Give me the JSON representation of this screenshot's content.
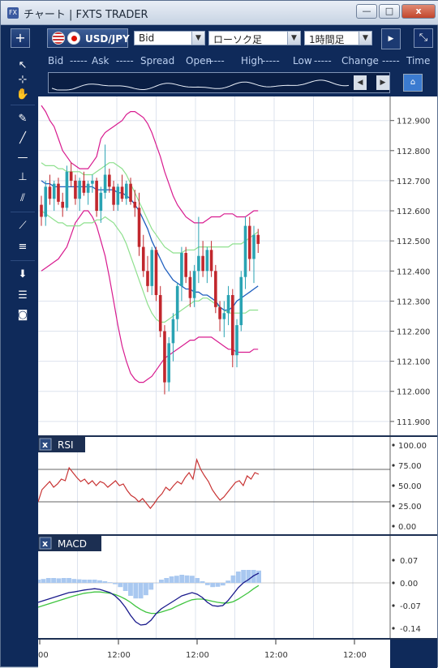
{
  "window": {
    "title": "チャート | FXTS TRADER",
    "min_glyph": "—",
    "max_glyph": "□",
    "close_glyph": "x"
  },
  "toolbar": {
    "plus_glyph": "+",
    "pair": "USD/JPY",
    "price_type": "Bid",
    "chart_type": "ローソク足",
    "timeframe": "1時間足",
    "dropdown_glyph": "▼",
    "scroll_glyph": "▶",
    "expand_glyph": "⤡"
  },
  "quote": {
    "labels": [
      "Bid",
      "-----",
      "Ask",
      "-----",
      "Spread",
      "Open",
      "-----",
      "High",
      "-----",
      "Low",
      "-----",
      "Change",
      "-----",
      "Time"
    ]
  },
  "nav": {
    "left_glyph": "◀",
    "right_glyph": "▶",
    "home_glyph": "⌂"
  },
  "tools": [
    {
      "name": "cursor-icon",
      "glyph": "↖"
    },
    {
      "name": "crosshair-icon",
      "glyph": "⊹"
    },
    {
      "name": "hand-icon",
      "glyph": "✋"
    },
    {
      "name": "pen-icon",
      "glyph": "✎"
    },
    {
      "name": "trendline-icon",
      "glyph": "╱"
    },
    {
      "name": "horizontal-line-icon",
      "glyph": "—"
    },
    {
      "name": "vertical-line-icon",
      "glyph": "⊥"
    },
    {
      "name": "channel-icon",
      "glyph": "⫽"
    },
    {
      "name": "fan-icon",
      "glyph": "⟋"
    },
    {
      "name": "fibonacci-icon",
      "glyph": "≡"
    },
    {
      "name": "download-icon",
      "glyph": "⬇"
    },
    {
      "name": "list-icon",
      "glyph": "☰"
    },
    {
      "name": "camera-icon",
      "glyph": "◙"
    }
  ],
  "colors": {
    "bg": "#ffffff",
    "grid": "#dde3ee",
    "up": "#2aa3b3",
    "down": "#c1272d",
    "bb_outer": "#d81b8f",
    "bb_inner": "#8ee08e",
    "ma": "#1f5fbf",
    "rsi": "#c83232",
    "macd": "#1a1a8c",
    "signal": "#3fc43f",
    "hist": "#a9c8f0"
  },
  "chart_data": {
    "type": "candlestick",
    "price_axis": [
      "112.900",
      "112.800",
      "112.700",
      "112.600",
      "112.500",
      "112.400",
      "112.300",
      "112.200",
      "112.100",
      "112.000",
      "111.900"
    ],
    "price_range": [
      111.87,
      112.98
    ],
    "time_axis": [
      "00",
      "12:00",
      "12:00",
      "12:00",
      "12:00"
    ],
    "candles": [
      [
        112.62,
        112.65,
        112.55,
        112.58
      ],
      [
        112.58,
        112.7,
        112.55,
        112.68
      ],
      [
        112.68,
        112.72,
        112.62,
        112.64
      ],
      [
        112.64,
        112.7,
        112.6,
        112.69
      ],
      [
        112.69,
        112.71,
        112.62,
        112.63
      ],
      [
        112.63,
        112.66,
        112.58,
        112.61
      ],
      [
        112.61,
        112.75,
        112.6,
        112.73
      ],
      [
        112.73,
        112.76,
        112.68,
        112.7
      ],
      [
        112.7,
        112.72,
        112.62,
        112.64
      ],
      [
        112.64,
        112.71,
        112.6,
        112.7
      ],
      [
        112.7,
        112.73,
        112.65,
        112.66
      ],
      [
        112.66,
        112.7,
        112.62,
        112.69
      ],
      [
        112.69,
        112.72,
        112.66,
        112.7
      ],
      [
        112.7,
        112.71,
        112.58,
        112.6
      ],
      [
        112.6,
        112.68,
        112.56,
        112.66
      ],
      [
        112.66,
        112.82,
        112.64,
        112.72
      ],
      [
        112.72,
        112.74,
        112.66,
        112.68
      ],
      [
        112.68,
        112.7,
        112.6,
        112.62
      ],
      [
        112.62,
        112.69,
        112.6,
        112.68
      ],
      [
        112.68,
        112.72,
        112.63,
        112.64
      ],
      [
        112.64,
        112.7,
        112.62,
        112.69
      ],
      [
        112.69,
        112.71,
        112.62,
        112.63
      ],
      [
        112.63,
        112.67,
        112.58,
        112.61
      ],
      [
        112.61,
        112.66,
        112.45,
        112.48
      ],
      [
        112.48,
        112.52,
        112.38,
        112.4
      ],
      [
        112.4,
        112.45,
        112.33,
        112.35
      ],
      [
        112.35,
        112.48,
        112.32,
        112.47
      ],
      [
        112.47,
        112.48,
        112.3,
        112.32
      ],
      [
        112.32,
        112.35,
        112.18,
        112.2
      ],
      [
        112.2,
        112.22,
        111.99,
        112.03
      ],
      [
        112.03,
        112.18,
        112.0,
        112.16
      ],
      [
        112.16,
        112.26,
        112.1,
        112.24
      ],
      [
        112.24,
        112.36,
        112.2,
        112.35
      ],
      [
        112.35,
        112.48,
        112.3,
        112.46
      ],
      [
        112.46,
        112.48,
        112.36,
        112.38
      ],
      [
        112.38,
        112.4,
        112.28,
        112.31
      ],
      [
        112.31,
        112.42,
        112.28,
        112.4
      ],
      [
        112.4,
        112.58,
        112.36,
        112.45
      ],
      [
        112.45,
        112.5,
        112.38,
        112.4
      ],
      [
        112.4,
        112.48,
        112.36,
        112.47
      ],
      [
        112.47,
        112.5,
        112.38,
        112.4
      ],
      [
        112.4,
        112.42,
        112.26,
        112.28
      ],
      [
        112.28,
        112.3,
        112.2,
        112.24
      ],
      [
        112.24,
        112.3,
        112.18,
        112.26
      ],
      [
        112.26,
        112.35,
        112.22,
        112.32
      ],
      [
        112.32,
        112.34,
        112.08,
        112.12
      ],
      [
        112.12,
        112.24,
        112.08,
        112.22
      ],
      [
        112.22,
        112.4,
        112.2,
        112.38
      ],
      [
        112.38,
        112.58,
        112.34,
        112.55
      ],
      [
        112.55,
        112.58,
        112.4,
        112.44
      ],
      [
        112.44,
        112.55,
        112.36,
        112.52
      ],
      [
        112.52,
        112.54,
        112.46,
        112.49
      ]
    ],
    "bollinger": {
      "upper": [
        112.95,
        112.93,
        112.9,
        112.88,
        112.84,
        112.8,
        112.78,
        112.76,
        112.75,
        112.74,
        112.74,
        112.74,
        112.76,
        112.78,
        112.84,
        112.86,
        112.87,
        112.88,
        112.89,
        112.9,
        112.92,
        112.93,
        112.93,
        112.92,
        112.91,
        112.89,
        112.86,
        112.82,
        112.78,
        112.73,
        112.69,
        112.65,
        112.62,
        112.6,
        112.58,
        112.57,
        112.56,
        112.56,
        112.56,
        112.57,
        112.58,
        112.58,
        112.58,
        112.59,
        112.59,
        112.59,
        112.58,
        112.58,
        112.58,
        112.59,
        112.6,
        112.6
      ],
      "middle": [
        112.68,
        112.68,
        112.67,
        112.67,
        112.66,
        112.66,
        112.66,
        112.66,
        112.66,
        112.66,
        112.66,
        112.67,
        112.67,
        112.68,
        112.69,
        112.7,
        112.71,
        112.71,
        112.7,
        112.69,
        112.67,
        112.64,
        112.61,
        112.58,
        112.55,
        112.51,
        112.48,
        112.46,
        112.44,
        112.42,
        112.41,
        112.4,
        112.4,
        112.4,
        112.41,
        112.41,
        112.42,
        112.42,
        112.43,
        112.43,
        112.43,
        112.42,
        112.41,
        112.4,
        112.4,
        112.39,
        112.39,
        112.39,
        112.4,
        112.4,
        112.4,
        112.41
      ],
      "inner_lower": [
        112.6,
        112.59,
        112.58,
        112.57,
        112.56,
        112.56,
        112.55,
        112.55,
        112.55,
        112.55,
        112.56,
        112.56,
        112.56,
        112.57,
        112.57,
        112.58,
        112.57,
        112.56,
        112.54,
        112.52,
        112.49,
        112.45,
        112.41,
        112.37,
        112.33,
        112.29,
        112.26,
        112.24,
        112.23,
        112.23,
        112.24,
        112.25,
        112.26,
        112.27,
        112.28,
        112.29,
        112.3,
        112.3,
        112.31,
        112.31,
        112.3,
        112.29,
        112.28,
        112.27,
        112.26,
        112.26,
        112.26,
        112.26,
        112.26,
        112.27,
        112.27,
        112.27
      ],
      "lower": [
        112.4,
        112.41,
        112.42,
        112.43,
        112.44,
        112.46,
        112.48,
        112.52,
        112.56,
        112.58,
        112.6,
        112.6,
        112.58,
        112.55,
        112.5,
        112.45,
        112.38,
        112.3,
        112.22,
        112.15,
        112.1,
        112.06,
        112.04,
        112.03,
        112.03,
        112.04,
        112.05,
        112.07,
        112.09,
        112.11,
        112.12,
        112.13,
        112.14,
        112.15,
        112.16,
        112.17,
        112.17,
        112.18,
        112.18,
        112.18,
        112.18,
        112.17,
        112.16,
        112.15,
        112.14,
        112.14,
        112.13,
        112.13,
        112.13,
        112.13,
        112.14,
        112.14
      ]
    },
    "inner_upper": [
      112.76,
      112.75,
      112.75,
      112.75,
      112.74,
      112.74,
      112.73,
      112.73,
      112.73,
      112.73,
      112.72,
      112.72,
      112.72,
      112.73,
      112.74,
      112.75,
      112.76,
      112.76,
      112.75,
      112.74,
      112.72,
      112.69,
      112.66,
      112.63,
      112.6,
      112.57,
      112.54,
      112.52,
      112.5,
      112.48,
      112.47,
      112.46,
      112.46,
      112.46,
      112.47,
      112.47,
      112.47,
      112.48,
      112.48,
      112.48,
      112.48,
      112.48,
      112.48,
      112.48,
      112.48,
      112.49,
      112.49,
      112.49,
      112.5,
      112.51,
      112.52,
      112.53
    ],
    "ma": [
      112.7,
      112.69,
      112.69,
      112.68,
      112.68,
      112.68,
      112.68,
      112.68,
      112.68,
      112.68,
      112.68,
      112.68,
      112.68,
      112.67,
      112.67,
      112.67,
      112.67,
      112.67,
      112.66,
      112.66,
      112.65,
      112.64,
      112.62,
      112.6,
      112.57,
      112.54,
      112.5,
      112.47,
      112.44,
      112.41,
      112.39,
      112.37,
      112.36,
      112.35,
      112.34,
      112.34,
      112.33,
      112.33,
      112.32,
      112.32,
      112.31,
      112.3,
      112.28,
      112.27,
      112.27,
      112.28,
      112.3,
      112.31,
      112.32,
      112.33,
      112.34,
      112.35
    ],
    "rsi": {
      "label": "RSI",
      "axis": [
        "100.00",
        "75.00",
        "50.00",
        "25.00",
        "0.00"
      ],
      "levels": [
        70,
        30
      ],
      "values": [
        30,
        45,
        50,
        55,
        48,
        52,
        58,
        56,
        72,
        66,
        60,
        55,
        58,
        52,
        56,
        50,
        55,
        53,
        48,
        52,
        56,
        50,
        52,
        44,
        38,
        35,
        30,
        34,
        28,
        22,
        28,
        35,
        40,
        48,
        44,
        50,
        55,
        52,
        60,
        66,
        58,
        82,
        70,
        62,
        55,
        45,
        38,
        32,
        36,
        42,
        48,
        54,
        56,
        50,
        62,
        58,
        66,
        64
      ]
    },
    "macd": {
      "label": "MACD",
      "axis": [
        "0.07",
        "0.00",
        "-0.07",
        "-0.14"
      ],
      "macd": [
        -0.06,
        -0.055,
        -0.05,
        -0.045,
        -0.04,
        -0.035,
        -0.03,
        -0.028,
        -0.025,
        -0.022,
        -0.02,
        -0.018,
        -0.02,
        -0.025,
        -0.03,
        -0.04,
        -0.055,
        -0.075,
        -0.1,
        -0.12,
        -0.13,
        -0.128,
        -0.115,
        -0.095,
        -0.08,
        -0.07,
        -0.06,
        -0.05,
        -0.04,
        -0.035,
        -0.03,
        -0.035,
        -0.045,
        -0.06,
        -0.07,
        -0.072,
        -0.07,
        -0.055,
        -0.035,
        -0.015,
        0.0,
        0.01,
        0.022,
        0.03
      ],
      "signal": [
        -0.075,
        -0.07,
        -0.065,
        -0.06,
        -0.055,
        -0.05,
        -0.045,
        -0.04,
        -0.036,
        -0.032,
        -0.03,
        -0.028,
        -0.028,
        -0.03,
        -0.032,
        -0.036,
        -0.042,
        -0.05,
        -0.06,
        -0.072,
        -0.082,
        -0.09,
        -0.094,
        -0.094,
        -0.09,
        -0.085,
        -0.08,
        -0.072,
        -0.065,
        -0.058,
        -0.052,
        -0.05,
        -0.05,
        -0.053,
        -0.057,
        -0.06,
        -0.062,
        -0.062,
        -0.058,
        -0.05,
        -0.04,
        -0.03,
        -0.018,
        -0.008
      ],
      "hist": [
        0.01,
        0.012,
        0.015,
        0.015,
        0.014,
        0.015,
        0.015,
        0.012,
        0.011,
        0.01,
        0.01,
        0.01,
        0.008,
        0.005,
        0.002,
        -0.004,
        -0.013,
        -0.025,
        -0.04,
        -0.048,
        -0.048,
        -0.038,
        -0.021,
        -0.001,
        0.01,
        0.015,
        0.02,
        0.022,
        0.025,
        0.023,
        0.022,
        0.015,
        0.005,
        -0.007,
        -0.013,
        -0.012,
        -0.008,
        0.007,
        0.023,
        0.035,
        0.04,
        0.04,
        0.04,
        0.038
      ]
    }
  }
}
